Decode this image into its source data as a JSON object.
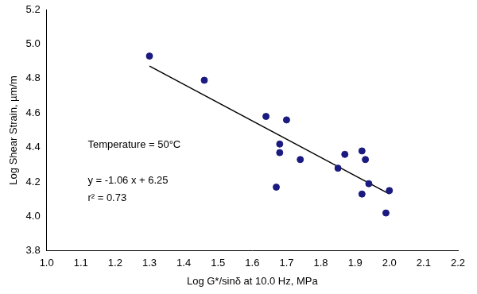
{
  "chart_data": {
    "type": "scatter",
    "x_label": "Log G*/sinδ at 10.0 Hz, MPa",
    "y_label": "Log Shear Strain, µm/m",
    "annotations": [
      "Temperature = 50°C",
      "y = -1.06 x + 6.25",
      "r² = 0.73"
    ],
    "x": [
      1.3,
      1.46,
      1.64,
      1.7,
      1.68,
      1.68,
      1.74,
      1.67,
      1.85,
      1.87,
      1.92,
      1.93,
      1.94,
      1.92,
      1.99,
      2.0
    ],
    "values": [
      4.93,
      4.79,
      4.58,
      4.56,
      4.42,
      4.37,
      4.33,
      4.17,
      4.28,
      4.36,
      4.38,
      4.33,
      4.19,
      4.13,
      4.02,
      4.15
    ],
    "color": "#1a1a80",
    "marker": "circle",
    "trendline": {
      "x": [
        1.3,
        2.0
      ],
      "values": [
        4.872,
        4.13
      ],
      "color": "#000000",
      "line_style": "solid"
    },
    "xlim": [
      1.0,
      2.2
    ],
    "xticks": [
      {
        "value": 1.0,
        "label": "1.0"
      },
      {
        "value": 1.1,
        "label": "1.1"
      },
      {
        "value": 1.2,
        "label": "1.2"
      },
      {
        "value": 1.3,
        "label": "1.3"
      },
      {
        "value": 1.4,
        "label": "1.4"
      },
      {
        "value": 1.5,
        "label": "1.5"
      },
      {
        "value": 1.6,
        "label": "1.6"
      },
      {
        "value": 1.7,
        "label": "1.7"
      },
      {
        "value": 1.8,
        "label": "1.8"
      },
      {
        "value": 1.9,
        "label": "1.9"
      },
      {
        "value": 2.0,
        "label": "2.0"
      },
      {
        "value": 2.1,
        "label": "2.1"
      },
      {
        "value": 2.2,
        "label": "2.2"
      }
    ],
    "ylim": [
      3.8,
      5.2
    ],
    "yticks": [
      {
        "value": 3.8,
        "label": "3.8"
      },
      {
        "value": 4.0,
        "label": "4.0"
      },
      {
        "value": 4.2,
        "label": "4.2"
      },
      {
        "value": 4.4,
        "label": "4.4"
      },
      {
        "value": 4.6,
        "label": "4.6"
      },
      {
        "value": 4.8,
        "label": "4.8"
      },
      {
        "value": 5.0,
        "label": "5.0"
      },
      {
        "value": 5.2,
        "label": "5.2"
      }
    ],
    "grid": false
  }
}
